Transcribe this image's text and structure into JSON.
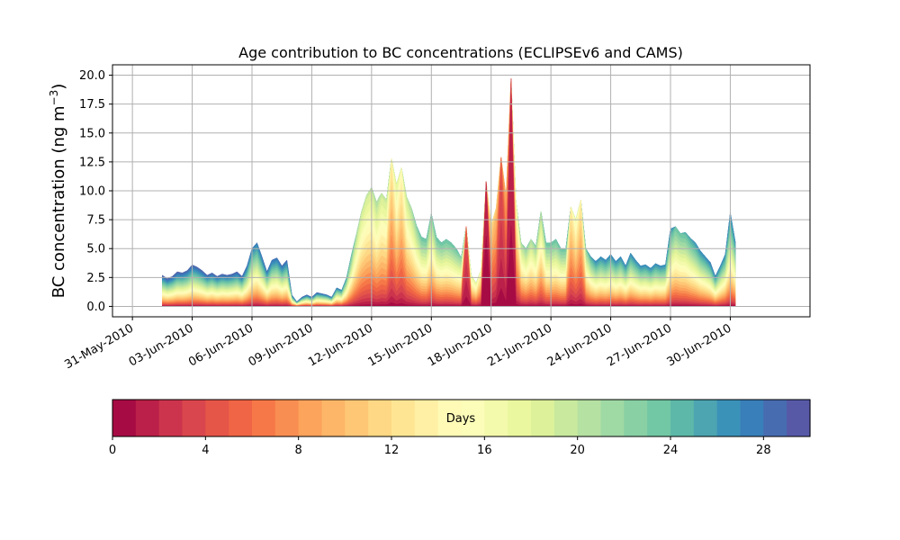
{
  "chart_data": {
    "type": "area",
    "title": "Age contribution to BC concentrations (ECLIPSEv6 and CAMS)",
    "xlabel": "",
    "ylabel": "BC concentration (ng m",
    "ylabel_superscript": "−3",
    "ylabel_suffix": ")",
    "xlim": [
      "2010-05-30",
      "2010-07-04"
    ],
    "ylim": [
      -0.9,
      20.9
    ],
    "grid": true,
    "x_ticks": [
      {
        "date": "2010-05-31",
        "label": "31-May-2010"
      },
      {
        "date": "2010-06-03",
        "label": "03-Jun-2010"
      },
      {
        "date": "2010-06-06",
        "label": "06-Jun-2010"
      },
      {
        "date": "2010-06-09",
        "label": "09-Jun-2010"
      },
      {
        "date": "2010-06-12",
        "label": "12-Jun-2010"
      },
      {
        "date": "2010-06-15",
        "label": "15-Jun-2010"
      },
      {
        "date": "2010-06-18",
        "label": "18-Jun-2010"
      },
      {
        "date": "2010-06-21",
        "label": "21-Jun-2010"
      },
      {
        "date": "2010-06-24",
        "label": "24-Jun-2010"
      },
      {
        "date": "2010-06-27",
        "label": "27-Jun-2010"
      },
      {
        "date": "2010-06-30",
        "label": "30-Jun-2010"
      }
    ],
    "y_ticks": [
      {
        "value": 0.0,
        "label": "0.0"
      },
      {
        "value": 2.5,
        "label": "2.5"
      },
      {
        "value": 5.0,
        "label": "5.0"
      },
      {
        "value": 7.5,
        "label": "7.5"
      },
      {
        "value": 10.0,
        "label": "10.0"
      },
      {
        "value": 12.5,
        "label": "12.5"
      },
      {
        "value": 15.0,
        "label": "15.0"
      },
      {
        "value": 17.5,
        "label": "17.5"
      },
      {
        "value": 20.0,
        "label": "20.0"
      }
    ],
    "colorscale": "Spectral",
    "colorbar": {
      "label": "Days",
      "range": [
        0,
        30
      ],
      "bins": 30,
      "ticks": [
        {
          "value": 0,
          "label": "0"
        },
        {
          "value": 4,
          "label": "4"
        },
        {
          "value": 8,
          "label": "8"
        },
        {
          "value": 12,
          "label": "12"
        },
        {
          "value": 16,
          "label": "16"
        },
        {
          "value": 20,
          "label": "20"
        },
        {
          "value": 24,
          "label": "24"
        },
        {
          "value": 28,
          "label": "28"
        }
      ]
    },
    "total": [
      [
        "2010-06-01 12:00",
        2.7
      ],
      [
        "2010-06-01 18:00",
        2.4
      ],
      [
        "2010-06-02 00:00",
        2.6
      ],
      [
        "2010-06-02 06:00",
        3.0
      ],
      [
        "2010-06-02 12:00",
        2.9
      ],
      [
        "2010-06-02 18:00",
        3.1
      ],
      [
        "2010-06-03 00:00",
        3.6
      ],
      [
        "2010-06-03 06:00",
        3.4
      ],
      [
        "2010-06-03 12:00",
        3.1
      ],
      [
        "2010-06-03 18:00",
        2.7
      ],
      [
        "2010-06-04 00:00",
        2.9
      ],
      [
        "2010-06-04 06:00",
        2.6
      ],
      [
        "2010-06-04 12:00",
        2.8
      ],
      [
        "2010-06-04 18:00",
        2.7
      ],
      [
        "2010-06-05 00:00",
        2.8
      ],
      [
        "2010-06-05 06:00",
        3.0
      ],
      [
        "2010-06-05 12:00",
        2.6
      ],
      [
        "2010-06-05 18:00",
        3.5
      ],
      [
        "2010-06-06 00:00",
        5.0
      ],
      [
        "2010-06-06 06:00",
        5.5
      ],
      [
        "2010-06-06 12:00",
        4.3
      ],
      [
        "2010-06-06 18:00",
        3.0
      ],
      [
        "2010-06-07 00:00",
        4.0
      ],
      [
        "2010-06-07 06:00",
        4.2
      ],
      [
        "2010-06-07 12:00",
        3.5
      ],
      [
        "2010-06-07 18:00",
        4.0
      ],
      [
        "2010-06-08 00:00",
        1.0
      ],
      [
        "2010-06-08 06:00",
        0.4
      ],
      [
        "2010-06-08 12:00",
        0.8
      ],
      [
        "2010-06-08 18:00",
        1.0
      ],
      [
        "2010-06-09 00:00",
        0.8
      ],
      [
        "2010-06-09 06:00",
        1.2
      ],
      [
        "2010-06-09 12:00",
        1.1
      ],
      [
        "2010-06-09 18:00",
        1.0
      ],
      [
        "2010-06-10 00:00",
        0.8
      ],
      [
        "2010-06-10 06:00",
        1.6
      ],
      [
        "2010-06-10 12:00",
        1.4
      ],
      [
        "2010-06-10 18:00",
        2.5
      ],
      [
        "2010-06-11 00:00",
        4.5
      ],
      [
        "2010-06-11 06:00",
        6.3
      ],
      [
        "2010-06-11 12:00",
        8.2
      ],
      [
        "2010-06-11 18:00",
        9.6
      ],
      [
        "2010-06-12 00:00",
        10.3
      ],
      [
        "2010-06-12 06:00",
        9.0
      ],
      [
        "2010-06-12 12:00",
        9.8
      ],
      [
        "2010-06-12 18:00",
        9.2
      ],
      [
        "2010-06-13 00:00",
        12.8
      ],
      [
        "2010-06-13 06:00",
        10.5
      ],
      [
        "2010-06-13 12:00",
        12.0
      ],
      [
        "2010-06-13 18:00",
        9.5
      ],
      [
        "2010-06-14 00:00",
        8.5
      ],
      [
        "2010-06-14 06:00",
        7.0
      ],
      [
        "2010-06-14 12:00",
        6.0
      ],
      [
        "2010-06-14 18:00",
        5.8
      ],
      [
        "2010-06-15 00:00",
        8.0
      ],
      [
        "2010-06-15 06:00",
        6.0
      ],
      [
        "2010-06-15 12:00",
        5.5
      ],
      [
        "2010-06-15 18:00",
        5.8
      ],
      [
        "2010-06-16 00:00",
        5.5
      ],
      [
        "2010-06-16 06:00",
        5.0
      ],
      [
        "2010-06-16 12:00",
        4.2
      ],
      [
        "2010-06-16 18:00",
        6.9
      ],
      [
        "2010-06-17 00:00",
        2.7
      ],
      [
        "2010-06-17 06:00",
        2.0
      ],
      [
        "2010-06-17 12:00",
        3.2
      ],
      [
        "2010-06-17 18:00",
        10.8
      ],
      [
        "2010-06-18 00:00",
        7.0
      ],
      [
        "2010-06-18 06:00",
        8.5
      ],
      [
        "2010-06-18 12:00",
        12.9
      ],
      [
        "2010-06-18 18:00",
        9.5
      ],
      [
        "2010-06-19 00:00",
        19.7
      ],
      [
        "2010-06-19 06:00",
        9.0
      ],
      [
        "2010-06-19 12:00",
        5.5
      ],
      [
        "2010-06-19 18:00",
        5.0
      ],
      [
        "2010-06-20 00:00",
        5.8
      ],
      [
        "2010-06-20 06:00",
        5.2
      ],
      [
        "2010-06-20 12:00",
        8.2
      ],
      [
        "2010-06-20 18:00",
        5.5
      ],
      [
        "2010-06-21 00:00",
        5.5
      ],
      [
        "2010-06-21 06:00",
        5.8
      ],
      [
        "2010-06-21 12:00",
        5.0
      ],
      [
        "2010-06-21 18:00",
        5.0
      ],
      [
        "2010-06-22 00:00",
        8.6
      ],
      [
        "2010-06-22 06:00",
        7.5
      ],
      [
        "2010-06-22 12:00",
        9.2
      ],
      [
        "2010-06-22 18:00",
        5.0
      ],
      [
        "2010-06-23 00:00",
        4.3
      ],
      [
        "2010-06-23 06:00",
        3.9
      ],
      [
        "2010-06-23 12:00",
        4.3
      ],
      [
        "2010-06-23 18:00",
        4.0
      ],
      [
        "2010-06-24 00:00",
        4.5
      ],
      [
        "2010-06-24 06:00",
        3.9
      ],
      [
        "2010-06-24 12:00",
        4.3
      ],
      [
        "2010-06-24 18:00",
        3.5
      ],
      [
        "2010-06-25 00:00",
        4.6
      ],
      [
        "2010-06-25 06:00",
        4.0
      ],
      [
        "2010-06-25 12:00",
        3.5
      ],
      [
        "2010-06-25 18:00",
        3.6
      ],
      [
        "2010-06-26 00:00",
        3.3
      ],
      [
        "2010-06-26 06:00",
        3.7
      ],
      [
        "2010-06-26 12:00",
        3.5
      ],
      [
        "2010-06-26 18:00",
        3.6
      ],
      [
        "2010-06-27 00:00",
        6.7
      ],
      [
        "2010-06-27 06:00",
        6.9
      ],
      [
        "2010-06-27 12:00",
        6.3
      ],
      [
        "2010-06-27 18:00",
        6.4
      ],
      [
        "2010-06-28 00:00",
        5.9
      ],
      [
        "2010-06-28 06:00",
        5.5
      ],
      [
        "2010-06-28 12:00",
        4.8
      ],
      [
        "2010-06-28 18:00",
        4.3
      ],
      [
        "2010-06-29 00:00",
        3.8
      ],
      [
        "2010-06-29 06:00",
        2.6
      ],
      [
        "2010-06-29 12:00",
        3.5
      ],
      [
        "2010-06-29 18:00",
        4.5
      ],
      [
        "2010-06-30 00:00",
        8.1
      ],
      [
        "2010-06-30 06:00",
        5.6
      ]
    ],
    "young_share": [
      0.02,
      0.02,
      0.02,
      0.02,
      0.03,
      0.03,
      0.03,
      0.03,
      0.03,
      0.03,
      0.03,
      0.03,
      0.03,
      0.03,
      0.03,
      0.03,
      0.03,
      0.05,
      0.08,
      0.08,
      0.06,
      0.05,
      0.06,
      0.06,
      0.05,
      0.05,
      0.03,
      0.03,
      0.03,
      0.03,
      0.03,
      0.03,
      0.05,
      0.05,
      0.05,
      0.08,
      0.1,
      0.15,
      0.2,
      0.3,
      0.35,
      0.35,
      0.35,
      0.3,
      0.35,
      0.35,
      0.55,
      0.4,
      0.5,
      0.35,
      0.3,
      0.25,
      0.2,
      0.2,
      0.25,
      0.2,
      0.2,
      0.2,
      0.2,
      0.2,
      0.25,
      0.85,
      0.4,
      0.4,
      0.5,
      0.95,
      0.6,
      0.65,
      0.85,
      0.7,
      0.93,
      0.5,
      0.3,
      0.25,
      0.3,
      0.25,
      0.3,
      0.2,
      0.2,
      0.2,
      0.2,
      0.2,
      0.55,
      0.45,
      0.55,
      0.25,
      0.15,
      0.1,
      0.1,
      0.1,
      0.1,
      0.1,
      0.1,
      0.1,
      0.1,
      0.1,
      0.1,
      0.1,
      0.1,
      0.1,
      0.1,
      0.1,
      0.12,
      0.2,
      0.2,
      0.18,
      0.15,
      0.12,
      0.1,
      0.1,
      0.08,
      0.08,
      0.1,
      0.1,
      0.1,
      0.1
    ]
  }
}
